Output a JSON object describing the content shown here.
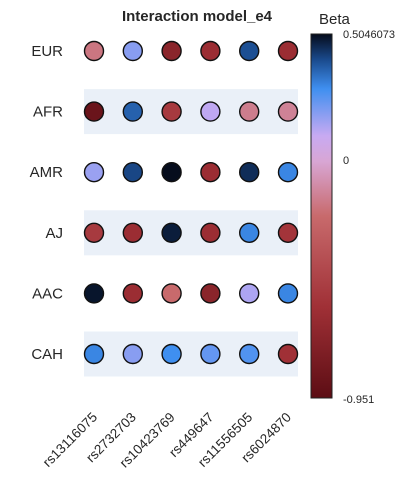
{
  "chart_data": {
    "type": "scatter",
    "title": "Interaction model_e4",
    "rows": [
      "EUR",
      "AFR",
      "AMR",
      "AJ",
      "AAC",
      "CAH"
    ],
    "columns": [
      "rs13116075",
      "rs2732703",
      "rs10423769",
      "rs449647",
      "rs11556505",
      "rs6024870"
    ],
    "values": [
      [
        -0.35,
        0.12,
        -0.78,
        -0.72,
        0.34,
        -0.72
      ],
      [
        -0.9,
        0.3,
        -0.65,
        0.06,
        -0.32,
        -0.3
      ],
      [
        0.1,
        0.36,
        0.5,
        -0.72,
        0.42,
        0.22
      ],
      [
        -0.65,
        -0.72,
        0.46,
        -0.72,
        0.22,
        -0.68
      ],
      [
        0.48,
        -0.72,
        -0.4,
        -0.78,
        0.08,
        0.22
      ],
      [
        0.22,
        0.12,
        0.2,
        0.16,
        0.18,
        -0.7
      ]
    ],
    "colorbar": {
      "label": "Beta",
      "max": 0.5046073,
      "min": -0.951,
      "ticks": [
        "0.5046073",
        "0",
        "-0.951"
      ]
    },
    "row_shading": [
      "#ffffff",
      "#eaf0f8",
      "#ffffff",
      "#eaf0f8",
      "#ffffff",
      "#eaf0f8"
    ]
  }
}
